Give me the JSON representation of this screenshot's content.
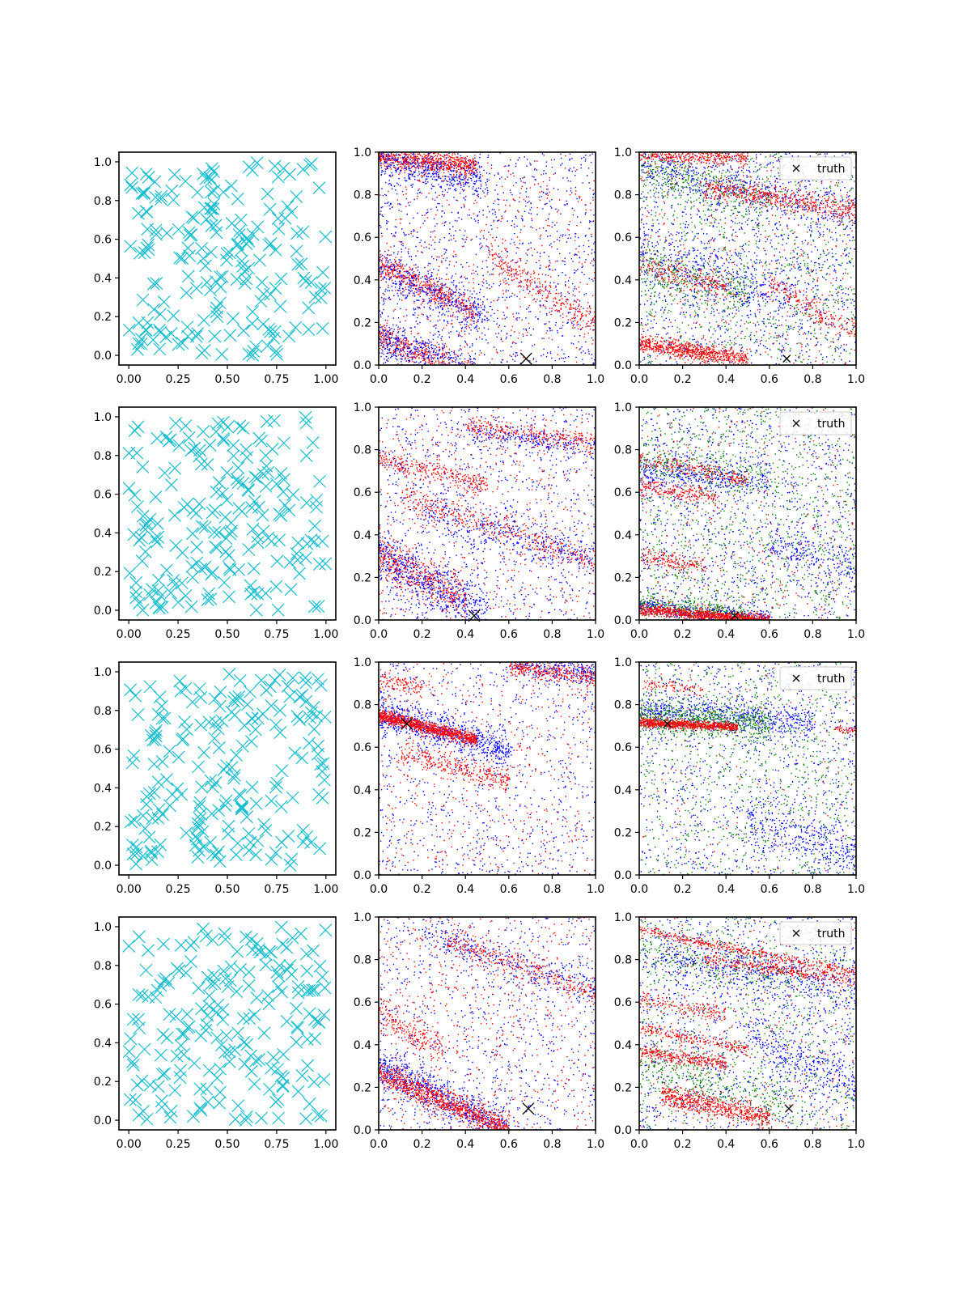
{
  "chart_data": [
    {
      "type": "scatter",
      "row": 1,
      "col": 1,
      "xlim": [
        -0.05,
        1.05
      ],
      "ylim": [
        -0.05,
        1.05
      ],
      "xticks": [
        "0.00",
        "0.25",
        "0.50",
        "0.75",
        "1.00"
      ],
      "yticks": [
        "0.0",
        "0.2",
        "0.4",
        "0.6",
        "0.8",
        "1.0"
      ],
      "marker": "x",
      "color": "#17becf",
      "approx_point_count": 200,
      "seed": 11,
      "series": []
    },
    {
      "type": "scatter",
      "row": 1,
      "col": 2,
      "xlim": [
        0,
        1
      ],
      "ylim": [
        0,
        1
      ],
      "xticks": [
        "0.0",
        "0.2",
        "0.4",
        "0.6",
        "0.8",
        "1.0"
      ],
      "yticks": [
        "0.0",
        "0.2",
        "0.4",
        "0.6",
        "0.8",
        "1.0"
      ],
      "truth": [
        0.68,
        0.03
      ],
      "legend": false,
      "seed": 21,
      "series": [
        {
          "color": "#ff0000",
          "uniform": 500,
          "bands": [
            {
              "x0": 0.0,
              "x1": 0.45,
              "y0": 0.98,
              "slope": -0.1,
              "spread": 0.025,
              "n": 700
            },
            {
              "x0": 0.0,
              "x1": 0.45,
              "y0": 0.48,
              "slope": -0.5,
              "spread": 0.03,
              "n": 500
            },
            {
              "x0": 0.0,
              "x1": 0.45,
              "y0": 0.14,
              "slope": -0.45,
              "spread": 0.035,
              "n": 500
            },
            {
              "x0": 0.5,
              "x1": 1.0,
              "y0": 0.85,
              "slope": -0.65,
              "spread": 0.04,
              "n": 300
            }
          ]
        },
        {
          "color": "#0000ff",
          "uniform": 1100,
          "bands": [
            {
              "x0": 0.0,
              "x1": 0.5,
              "y0": 0.96,
              "slope": -0.2,
              "spread": 0.04,
              "n": 400
            },
            {
              "x0": 0.0,
              "x1": 0.5,
              "y0": 0.45,
              "slope": -0.45,
              "spread": 0.05,
              "n": 400
            },
            {
              "x0": 0.0,
              "x1": 0.45,
              "y0": 0.12,
              "slope": -0.35,
              "spread": 0.05,
              "n": 400
            }
          ]
        }
      ]
    },
    {
      "type": "scatter",
      "row": 1,
      "col": 3,
      "xlim": [
        0,
        1
      ],
      "ylim": [
        0,
        1
      ],
      "xticks": [
        "0.0",
        "0.2",
        "0.4",
        "0.6",
        "0.8",
        "1.0"
      ],
      "yticks": [
        "0.0",
        "0.2",
        "0.4",
        "0.6",
        "0.8",
        "1.0"
      ],
      "truth": [
        0.68,
        0.03
      ],
      "legend": true,
      "legend_label": "truth",
      "seed": 31,
      "series": [
        {
          "color": "#008000",
          "uniform": 900,
          "bands": [
            {
              "x0": 0.0,
              "x1": 0.6,
              "y0": 0.92,
              "slope": -0.25,
              "spread": 0.05,
              "n": 300
            },
            {
              "x0": 0.0,
              "x1": 0.5,
              "y0": 0.45,
              "slope": -0.2,
              "spread": 0.06,
              "n": 300
            }
          ]
        },
        {
          "color": "#0000ff",
          "uniform": 1300,
          "bands": [
            {
              "x0": 0.0,
              "x1": 1.0,
              "y0": 0.95,
              "slope": -0.25,
              "spread": 0.05,
              "n": 400
            },
            {
              "x0": 0.0,
              "x1": 0.7,
              "y0": 0.55,
              "slope": -0.35,
              "spread": 0.06,
              "n": 300
            }
          ]
        },
        {
          "color": "#ff0000",
          "uniform": 400,
          "bands": [
            {
              "x0": 0.0,
              "x1": 0.5,
              "y0": 1.0,
              "slope": -0.05,
              "spread": 0.02,
              "n": 400
            },
            {
              "x0": 0.3,
              "x1": 1.0,
              "y0": 0.88,
              "slope": -0.15,
              "spread": 0.025,
              "n": 500
            },
            {
              "x0": 0.0,
              "x1": 0.5,
              "y0": 0.1,
              "slope": -0.14,
              "spread": 0.02,
              "n": 700
            },
            {
              "x0": 0.0,
              "x1": 0.4,
              "y0": 0.48,
              "slope": -0.3,
              "spread": 0.03,
              "n": 200
            },
            {
              "x0": 0.6,
              "x1": 1.0,
              "y0": 0.75,
              "slope": -0.6,
              "spread": 0.03,
              "n": 200
            }
          ]
        }
      ]
    },
    {
      "type": "scatter",
      "row": 2,
      "col": 1,
      "xlim": [
        -0.05,
        1.05
      ],
      "ylim": [
        -0.05,
        1.05
      ],
      "xticks": [
        "0.00",
        "0.25",
        "0.50",
        "0.75",
        "1.00"
      ],
      "yticks": [
        "0.0",
        "0.2",
        "0.4",
        "0.6",
        "0.8",
        "1.0"
      ],
      "marker": "x",
      "color": "#17becf",
      "approx_point_count": 200,
      "seed": 12,
      "series": []
    },
    {
      "type": "scatter",
      "row": 2,
      "col": 2,
      "xlim": [
        0,
        1
      ],
      "ylim": [
        0,
        1
      ],
      "xticks": [
        "0.0",
        "0.2",
        "0.4",
        "0.6",
        "0.8",
        "1.0"
      ],
      "yticks": [
        "0.0",
        "0.2",
        "0.4",
        "0.6",
        "0.8",
        "1.0"
      ],
      "truth": [
        0.44,
        0.02
      ],
      "legend": false,
      "seed": 22,
      "series": [
        {
          "color": "#ff0000",
          "uniform": 500,
          "bands": [
            {
              "x0": 0.0,
              "x1": 0.5,
              "y0": 0.76,
              "slope": -0.25,
              "spread": 0.025,
              "n": 300
            },
            {
              "x0": 0.1,
              "x1": 1.0,
              "y0": 0.62,
              "slope": -0.35,
              "spread": 0.03,
              "n": 400
            },
            {
              "x0": 0.0,
              "x1": 0.4,
              "y0": 0.3,
              "slope": -0.5,
              "spread": 0.05,
              "n": 500
            },
            {
              "x0": 0.4,
              "x1": 1.0,
              "y0": 0.98,
              "slope": -0.15,
              "spread": 0.025,
              "n": 300
            }
          ]
        },
        {
          "color": "#0000ff",
          "uniform": 1000,
          "bands": [
            {
              "x0": 0.0,
              "x1": 0.5,
              "y0": 0.3,
              "slope": -0.55,
              "spread": 0.06,
              "n": 500
            },
            {
              "x0": 0.2,
              "x1": 1.0,
              "y0": 0.55,
              "slope": -0.25,
              "spread": 0.05,
              "n": 300
            },
            {
              "x0": 0.4,
              "x1": 1.0,
              "y0": 0.95,
              "slope": -0.15,
              "spread": 0.03,
              "n": 200
            }
          ]
        }
      ]
    },
    {
      "type": "scatter",
      "row": 2,
      "col": 3,
      "xlim": [
        0,
        1
      ],
      "ylim": [
        0,
        1
      ],
      "xticks": [
        "0.0",
        "0.2",
        "0.4",
        "0.6",
        "0.8",
        "1.0"
      ],
      "yticks": [
        "0.0",
        "0.2",
        "0.4",
        "0.6",
        "0.8",
        "1.0"
      ],
      "truth": [
        0.44,
        0.02
      ],
      "legend": true,
      "legend_label": "truth",
      "seed": 32,
      "series": [
        {
          "color": "#008000",
          "uniform": 1100,
          "bands": [
            {
              "x0": 0.0,
              "x1": 0.5,
              "y0": 0.08,
              "slope": -0.1,
              "spread": 0.02,
              "n": 300
            },
            {
              "x0": 0.0,
              "x1": 0.6,
              "y0": 0.75,
              "slope": -0.15,
              "spread": 0.04,
              "n": 200
            }
          ]
        },
        {
          "color": "#0000ff",
          "uniform": 1100,
          "bands": [
            {
              "x0": 0.0,
              "x1": 0.6,
              "y0": 0.7,
              "slope": -0.1,
              "spread": 0.03,
              "n": 300
            },
            {
              "x0": 0.6,
              "x1": 1.0,
              "y0": 0.55,
              "slope": -0.3,
              "spread": 0.05,
              "n": 200
            },
            {
              "x0": 0.0,
              "x1": 0.6,
              "y0": 0.06,
              "slope": -0.08,
              "spread": 0.02,
              "n": 300
            }
          ]
        },
        {
          "color": "#ff0000",
          "uniform": 300,
          "bands": [
            {
              "x0": 0.0,
              "x1": 0.6,
              "y0": 0.05,
              "slope": -0.08,
              "spread": 0.012,
              "n": 900
            },
            {
              "x0": 0.0,
              "x1": 0.5,
              "y0": 0.76,
              "slope": -0.2,
              "spread": 0.02,
              "n": 200
            },
            {
              "x0": 0.0,
              "x1": 0.35,
              "y0": 0.63,
              "slope": -0.15,
              "spread": 0.02,
              "n": 200
            },
            {
              "x0": 0.0,
              "x1": 0.3,
              "y0": 0.3,
              "slope": -0.15,
              "spread": 0.02,
              "n": 150
            }
          ]
        }
      ]
    },
    {
      "type": "scatter",
      "row": 3,
      "col": 1,
      "xlim": [
        -0.05,
        1.05
      ],
      "ylim": [
        -0.05,
        1.05
      ],
      "xticks": [
        "0.00",
        "0.25",
        "0.50",
        "0.75",
        "1.00"
      ],
      "yticks": [
        "0.0",
        "0.2",
        "0.4",
        "0.6",
        "0.8",
        "1.0"
      ],
      "marker": "x",
      "color": "#17becf",
      "approx_point_count": 200,
      "seed": 13,
      "series": []
    },
    {
      "type": "scatter",
      "row": 3,
      "col": 2,
      "xlim": [
        0,
        1
      ],
      "ylim": [
        0,
        1
      ],
      "xticks": [
        "0.0",
        "0.2",
        "0.4",
        "0.6",
        "0.8",
        "1.0"
      ],
      "yticks": [
        "0.0",
        "0.2",
        "0.4",
        "0.6",
        "0.8",
        "1.0"
      ],
      "truth": [
        0.13,
        0.71
      ],
      "legend": false,
      "seed": 23,
      "series": [
        {
          "color": "#0000ff",
          "uniform": 900,
          "bands": [
            {
              "x0": 0.0,
              "x1": 0.6,
              "y0": 0.76,
              "slope": -0.3,
              "spread": 0.04,
              "n": 700
            },
            {
              "x0": 0.6,
              "x1": 1.0,
              "y0": 1.1,
              "slope": -0.15,
              "spread": 0.03,
              "n": 300
            }
          ]
        },
        {
          "color": "#ff0000",
          "uniform": 500,
          "bands": [
            {
              "x0": 0.0,
              "x1": 0.45,
              "y0": 0.75,
              "slope": -0.25,
              "spread": 0.015,
              "n": 1000
            },
            {
              "x0": 0.1,
              "x1": 0.6,
              "y0": 0.6,
              "slope": -0.25,
              "spread": 0.025,
              "n": 300
            },
            {
              "x0": 0.6,
              "x1": 1.0,
              "y0": 1.05,
              "slope": -0.12,
              "spread": 0.02,
              "n": 300
            },
            {
              "x0": 0.0,
              "x1": 0.2,
              "y0": 0.92,
              "slope": -0.2,
              "spread": 0.02,
              "n": 100
            }
          ]
        }
      ]
    },
    {
      "type": "scatter",
      "row": 3,
      "col": 3,
      "xlim": [
        0,
        1
      ],
      "ylim": [
        0,
        1
      ],
      "xticks": [
        "0.0",
        "0.2",
        "0.4",
        "0.6",
        "0.8",
        "1.0"
      ],
      "yticks": [
        "0.0",
        "0.2",
        "0.4",
        "0.6",
        "0.8",
        "1.0"
      ],
      "truth": [
        0.13,
        0.71
      ],
      "legend": true,
      "legend_label": "truth",
      "seed": 33,
      "series": [
        {
          "color": "#0000ff",
          "uniform": 1000,
          "bands": [
            {
              "x0": 0.0,
              "x1": 0.8,
              "y0": 0.78,
              "slope": -0.08,
              "spread": 0.04,
              "n": 600
            },
            {
              "x0": 0.5,
              "x1": 1.0,
              "y0": 0.45,
              "slope": -0.35,
              "spread": 0.06,
              "n": 300
            }
          ]
        },
        {
          "color": "#008000",
          "uniform": 900,
          "bands": [
            {
              "x0": 0.0,
              "x1": 0.6,
              "y0": 0.74,
              "slope": -0.05,
              "spread": 0.04,
              "n": 600
            }
          ]
        },
        {
          "color": "#ff0000",
          "uniform": 120,
          "bands": [
            {
              "x0": 0.0,
              "x1": 0.45,
              "y0": 0.72,
              "slope": -0.05,
              "spread": 0.01,
              "n": 800
            },
            {
              "x0": 0.9,
              "x1": 1.0,
              "y0": 0.73,
              "slope": -0.05,
              "spread": 0.01,
              "n": 40
            },
            {
              "x0": 0.0,
              "x1": 0.3,
              "y0": 0.9,
              "slope": -0.1,
              "spread": 0.015,
              "n": 80
            }
          ]
        }
      ]
    },
    {
      "type": "scatter",
      "row": 4,
      "col": 1,
      "xlim": [
        -0.05,
        1.05
      ],
      "ylim": [
        -0.05,
        1.05
      ],
      "xticks": [
        "0.00",
        "0.25",
        "0.50",
        "0.75",
        "1.00"
      ],
      "yticks": [
        "0.0",
        "0.2",
        "0.4",
        "0.6",
        "0.8",
        "1.0"
      ],
      "marker": "x",
      "color": "#17becf",
      "approx_point_count": 200,
      "seed": 14,
      "series": []
    },
    {
      "type": "scatter",
      "row": 4,
      "col": 2,
      "xlim": [
        0,
        1
      ],
      "ylim": [
        0,
        1
      ],
      "xticks": [
        "0.0",
        "0.2",
        "0.4",
        "0.6",
        "0.8",
        "1.0"
      ],
      "yticks": [
        "0.0",
        "0.2",
        "0.4",
        "0.6",
        "0.8",
        "1.0"
      ],
      "truth": [
        0.69,
        0.1
      ],
      "legend": false,
      "seed": 24,
      "series": [
        {
          "color": "#0000ff",
          "uniform": 900,
          "bands": [
            {
              "x0": 0.0,
              "x1": 0.6,
              "y0": 0.3,
              "slope": -0.5,
              "spread": 0.05,
              "n": 700
            },
            {
              "x0": 0.2,
              "x1": 1.0,
              "y0": 1.0,
              "slope": -0.35,
              "spread": 0.04,
              "n": 300
            }
          ]
        },
        {
          "color": "#ff0000",
          "uniform": 600,
          "bands": [
            {
              "x0": 0.0,
              "x1": 0.6,
              "y0": 0.27,
              "slope": -0.45,
              "spread": 0.03,
              "n": 900
            },
            {
              "x0": 0.0,
              "x1": 0.3,
              "y0": 0.55,
              "slope": -0.6,
              "spread": 0.04,
              "n": 200
            },
            {
              "x0": 0.3,
              "x1": 1.0,
              "y0": 1.0,
              "slope": -0.35,
              "spread": 0.03,
              "n": 300
            }
          ]
        }
      ]
    },
    {
      "type": "scatter",
      "row": 4,
      "col": 3,
      "xlim": [
        0,
        1
      ],
      "ylim": [
        0,
        1
      ],
      "xticks": [
        "0.0",
        "0.2",
        "0.4",
        "0.6",
        "0.8",
        "1.0"
      ],
      "yticks": [
        "0.0",
        "0.2",
        "0.4",
        "0.6",
        "0.8",
        "1.0"
      ],
      "truth": [
        0.69,
        0.1
      ],
      "legend": true,
      "legend_label": "truth",
      "seed": 34,
      "series": [
        {
          "color": "#008000",
          "uniform": 800,
          "bands": [
            {
              "x0": 0.0,
              "x1": 0.7,
              "y0": 0.3,
              "slope": -0.25,
              "spread": 0.05,
              "n": 300
            },
            {
              "x0": 0.0,
              "x1": 0.7,
              "y0": 0.85,
              "slope": -0.2,
              "spread": 0.05,
              "n": 200
            }
          ]
        },
        {
          "color": "#0000ff",
          "uniform": 1200,
          "bands": [
            {
              "x0": 0.1,
              "x1": 1.0,
              "y0": 0.85,
              "slope": -0.2,
              "spread": 0.05,
              "n": 400
            },
            {
              "x0": 0.5,
              "x1": 1.0,
              "y0": 0.7,
              "slope": -0.5,
              "spread": 0.05,
              "n": 300
            }
          ]
        },
        {
          "color": "#ff0000",
          "uniform": 300,
          "bands": [
            {
              "x0": 0.0,
              "x1": 1.0,
              "y0": 0.94,
              "slope": -0.2,
              "spread": 0.012,
              "n": 400
            },
            {
              "x0": 0.3,
              "x1": 1.0,
              "y0": 0.85,
              "slope": -0.15,
              "spread": 0.015,
              "n": 300
            },
            {
              "x0": 0.0,
              "x1": 0.5,
              "y0": 0.48,
              "slope": -0.2,
              "spread": 0.015,
              "n": 200
            },
            {
              "x0": 0.0,
              "x1": 0.4,
              "y0": 0.37,
              "slope": -0.15,
              "spread": 0.015,
              "n": 300
            },
            {
              "x0": 0.1,
              "x1": 0.6,
              "y0": 0.18,
              "slope": -0.2,
              "spread": 0.025,
              "n": 600
            },
            {
              "x0": 0.0,
              "x1": 0.4,
              "y0": 0.62,
              "slope": -0.2,
              "spread": 0.02,
              "n": 150
            }
          ]
        }
      ]
    }
  ]
}
